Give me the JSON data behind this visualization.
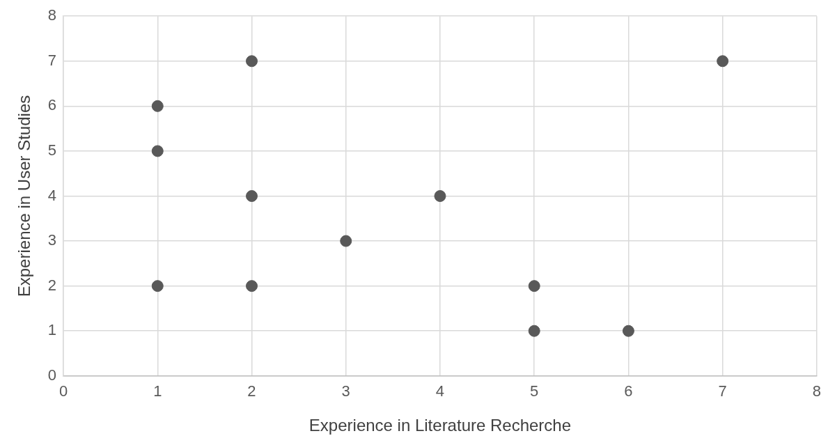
{
  "chart_data": {
    "type": "scatter",
    "xlabel": "Experience in Literature Recherche",
    "ylabel": "Experience in User Studies",
    "x": [
      1,
      1,
      1,
      2,
      2,
      2,
      3,
      4,
      5,
      5,
      6,
      7
    ],
    "series": [
      {
        "color": "#595959",
        "values": [
          6,
          5,
          2,
          7,
          4,
          2,
          3,
          4,
          2,
          1,
          1,
          7
        ]
      }
    ],
    "xlim": [
      0,
      8
    ],
    "xticks": [
      0,
      1,
      2,
      3,
      4,
      5,
      6,
      7,
      8
    ],
    "ylim": [
      0,
      8
    ],
    "yticks": [
      0,
      1,
      2,
      3,
      4,
      5,
      6,
      7,
      8
    ],
    "grid": true,
    "marker": "circle",
    "legend": false
  }
}
